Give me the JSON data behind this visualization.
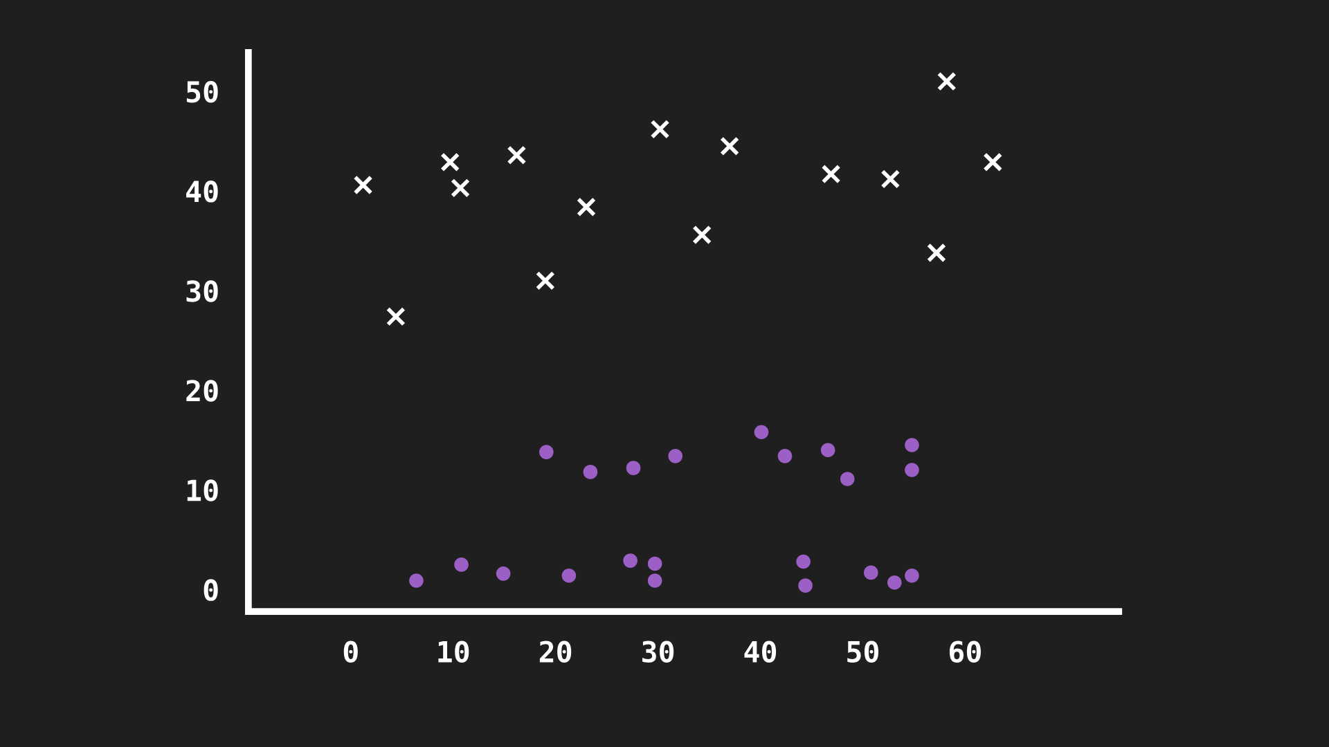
{
  "chart_data": {
    "type": "scatter",
    "xlim": [
      -10,
      75
    ],
    "ylim": [
      -2.2,
      53.9
    ],
    "xticks": [
      0,
      10,
      20,
      30,
      40,
      50,
      60
    ],
    "yticks": [
      0,
      10,
      20,
      30,
      40,
      50
    ],
    "grid": false,
    "legend": false,
    "series": [
      {
        "color": "#ffffff",
        "marker": "cross",
        "x": [
          1.2,
          4.4,
          9.7,
          10.7,
          16.2,
          19.0,
          23.0,
          30.2,
          34.3,
          37.0,
          46.9,
          52.7,
          57.2,
          58.2,
          62.7
        ],
        "values": [
          40.6,
          27.4,
          42.9,
          40.3,
          43.6,
          31.0,
          38.4,
          46.2,
          35.6,
          44.5,
          41.7,
          41.2,
          33.8,
          51.0,
          42.9
        ]
      },
      {
        "color": "#9b5fc6",
        "marker": "circle",
        "x": [
          6.4,
          10.8,
          14.9,
          19.1,
          21.3,
          23.4,
          27.3,
          27.6,
          29.7,
          29.7,
          31.7,
          40.1,
          42.4,
          44.2,
          44.4,
          46.6,
          48.5,
          50.8,
          53.1,
          54.8,
          54.8,
          54.8
        ],
        "values": [
          0.9,
          2.5,
          1.6,
          13.8,
          1.4,
          11.8,
          2.9,
          12.2,
          2.6,
          0.9,
          13.4,
          15.8,
          13.4,
          2.8,
          0.4,
          14.0,
          11.1,
          1.7,
          0.7,
          14.5,
          12.0,
          1.4
        ]
      }
    ]
  }
}
